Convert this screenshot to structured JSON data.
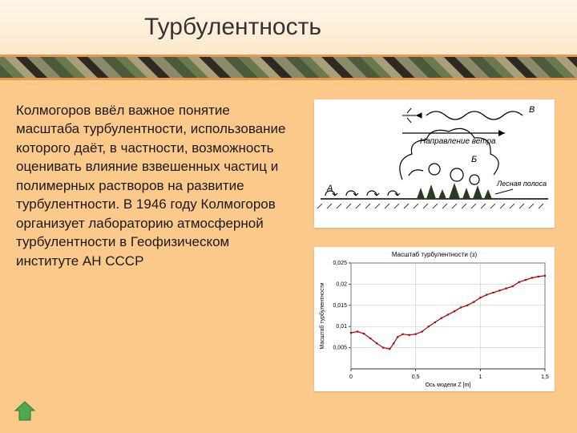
{
  "slide": {
    "title": "Турбулентность",
    "body": "Колмогоров ввёл важное понятие масштаба турбулентности, использование которого даёт, в частности, возможность оценивать влияние взвешенных частиц и полимерных растворов на развитие турбулентности. В 1946 году Колмогоров организует лабораторию атмосферной турбулентности в Геофизическом институте АН СССР"
  },
  "figure1": {
    "type": "schematic",
    "wind_label": "Направление ветра",
    "objects": {
      "A": "А",
      "B": "Б",
      "V": "В",
      "forest_label": "Лесная полоса"
    },
    "colors": {
      "stroke": "#000000",
      "bg": "#ffffff",
      "tree": "#2a3a1e"
    }
  },
  "figure2": {
    "type": "line",
    "title": "Масштаб турбулентности (з)",
    "xlabel": "Ось модели Z [m]",
    "ylabel": "Масштаб турбулентности",
    "xlim": [
      0,
      1.5
    ],
    "ylim": [
      0,
      0.025
    ],
    "xticks": [
      0,
      0.5,
      1,
      1.5
    ],
    "yticks": [
      0.005,
      0.01,
      0.015,
      0.02,
      0.025
    ],
    "ytick_labels": [
      "0,005",
      "0,01",
      "0,015",
      "0,02",
      "0,025"
    ],
    "series": {
      "color": "#aa0000",
      "marker": "square",
      "marker_size": 2.2,
      "line_width": 1.2,
      "points": [
        [
          0.0,
          0.0085
        ],
        [
          0.05,
          0.0088
        ],
        [
          0.1,
          0.0083
        ],
        [
          0.15,
          0.0072
        ],
        [
          0.2,
          0.006
        ],
        [
          0.25,
          0.005
        ],
        [
          0.3,
          0.0047
        ],
        [
          0.33,
          0.006
        ],
        [
          0.36,
          0.0075
        ],
        [
          0.4,
          0.0082
        ],
        [
          0.45,
          0.008
        ],
        [
          0.5,
          0.0082
        ],
        [
          0.55,
          0.0088
        ],
        [
          0.6,
          0.01
        ],
        [
          0.65,
          0.011
        ],
        [
          0.7,
          0.012
        ],
        [
          0.75,
          0.0128
        ],
        [
          0.8,
          0.0136
        ],
        [
          0.85,
          0.0145
        ],
        [
          0.9,
          0.015
        ],
        [
          0.95,
          0.0158
        ],
        [
          1.0,
          0.0168
        ],
        [
          1.05,
          0.0175
        ],
        [
          1.1,
          0.018
        ],
        [
          1.15,
          0.0185
        ],
        [
          1.2,
          0.019
        ],
        [
          1.25,
          0.0195
        ],
        [
          1.3,
          0.0205
        ],
        [
          1.35,
          0.021
        ],
        [
          1.4,
          0.0215
        ],
        [
          1.45,
          0.0218
        ],
        [
          1.5,
          0.022
        ]
      ]
    },
    "grid_color": "#bfbfbf",
    "background_color": "#ffffff"
  },
  "nav": {
    "back_label": "back"
  }
}
